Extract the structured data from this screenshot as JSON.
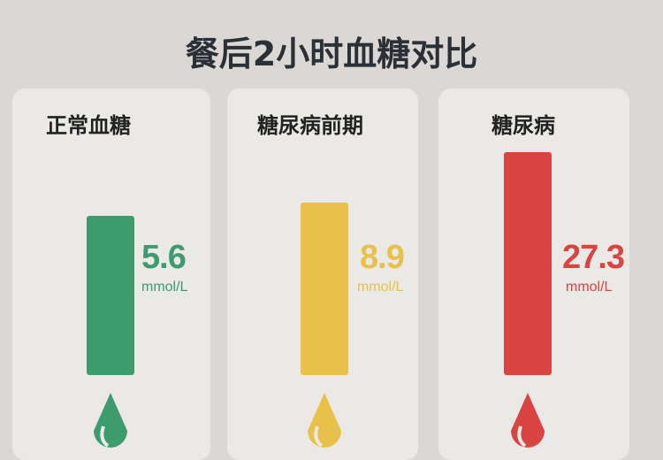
{
  "chart_data": {
    "type": "bar",
    "title": "餐后2小时血糖对比",
    "categories": [
      "正常血糖",
      "糖尿病前期",
      "糖尿病"
    ],
    "values": [
      5.6,
      8.9,
      27.3
    ],
    "value_labels": [
      "5.6",
      "8.9",
      "27.3"
    ],
    "unit": "mmol/L",
    "colors": [
      "#3e9b6e",
      "#e8c14a",
      "#d94440"
    ],
    "icon": "blood-drop-icon"
  }
}
